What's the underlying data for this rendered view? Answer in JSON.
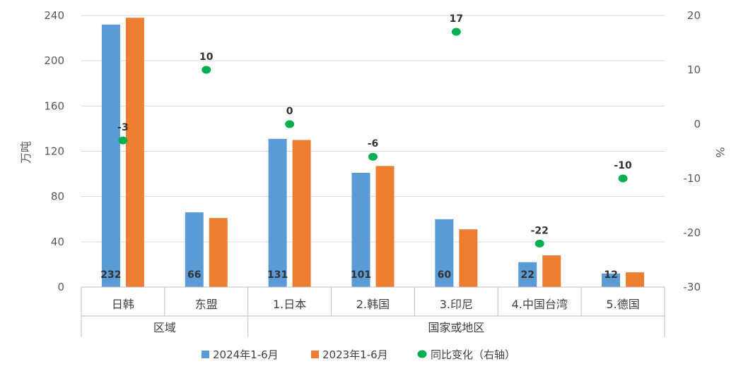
{
  "chart_data": {
    "type": "bar",
    "categories": [
      "日韩",
      "东盟",
      "1.日本",
      "2.韩国",
      "3.印尼",
      "4.中国台湾",
      "5.德国"
    ],
    "groups": [
      {
        "label": "区域",
        "categories": [
          "日韩",
          "东盟"
        ]
      },
      {
        "label": "国家或地区",
        "categories": [
          "1.日本",
          "2.韩国",
          "3.印尼",
          "4.中国台湾",
          "5.德国"
        ]
      }
    ],
    "series": [
      {
        "name": "2024年1-6月",
        "type": "bar",
        "axis": "left",
        "color": "#5B9BD5",
        "values": [
          232,
          66,
          131,
          101,
          60,
          22,
          12
        ],
        "labels": [
          "232",
          "66",
          "131",
          "101",
          "60",
          "22",
          "12"
        ]
      },
      {
        "name": "2023年1-6月",
        "type": "bar",
        "axis": "left",
        "color": "#ED7D31",
        "values": [
          238,
          61,
          130,
          107,
          51,
          28,
          13
        ]
      },
      {
        "name": "同比变化（右轴）",
        "type": "scatter",
        "axis": "right",
        "color": "#00B050",
        "values": [
          -3,
          10,
          0,
          -6,
          17,
          -22,
          -10
        ],
        "labels": [
          "-3",
          "10",
          "0",
          "-6",
          "17",
          "-22",
          "-10"
        ]
      }
    ],
    "ylabel": "万吨",
    "ylim": [
      0,
      240
    ],
    "yticks": [
      "0",
      "40",
      "80",
      "120",
      "160",
      "200",
      "240"
    ],
    "y2label": "%",
    "y2lim": [
      -30,
      20
    ],
    "y2ticks": [
      "-30",
      "-20",
      "-10",
      "0",
      "10",
      "20"
    ],
    "grid": true,
    "legend_position": "bottom"
  }
}
